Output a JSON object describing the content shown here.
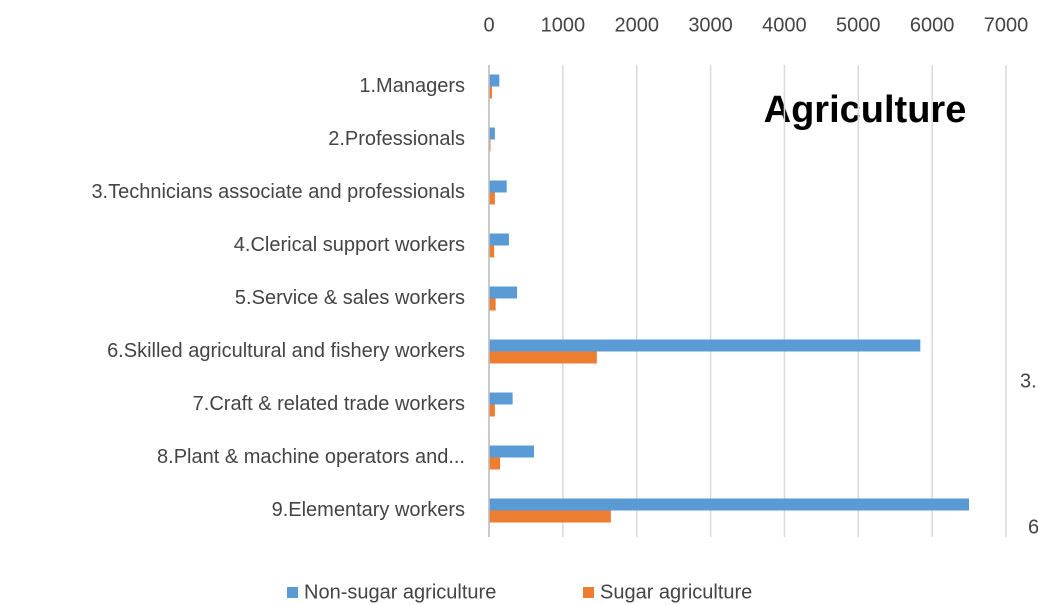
{
  "chart_data": {
    "type": "barh",
    "title": "Agriculture",
    "categories": [
      "1.Managers",
      "2.Professionals",
      "3.Technicians associate and professionals",
      "4.Clerical support workers",
      "5.Service & sales workers",
      "6.Skilled agricultural and fishery workers",
      "7.Craft & related trade workers",
      "8.Plant & machine operators and...",
      "9.Elementary workers"
    ],
    "series": [
      {
        "name": "Non-sugar agriculture",
        "color": "#5b9bd5",
        "values": [
          140,
          80,
          240,
          270,
          380,
          5840,
          320,
          610,
          6500
        ]
      },
      {
        "name": "Sugar agriculture",
        "color": "#ed7d31",
        "values": [
          40,
          20,
          80,
          70,
          90,
          1460,
          80,
          150,
          1650
        ]
      }
    ],
    "xlim": [
      0,
      7000
    ],
    "xticks": [
      0,
      1000,
      2000,
      3000,
      4000,
      5000,
      6000,
      7000
    ],
    "grid": true,
    "legend": "bottom",
    "annotations": [
      "3.",
      "6"
    ]
  }
}
